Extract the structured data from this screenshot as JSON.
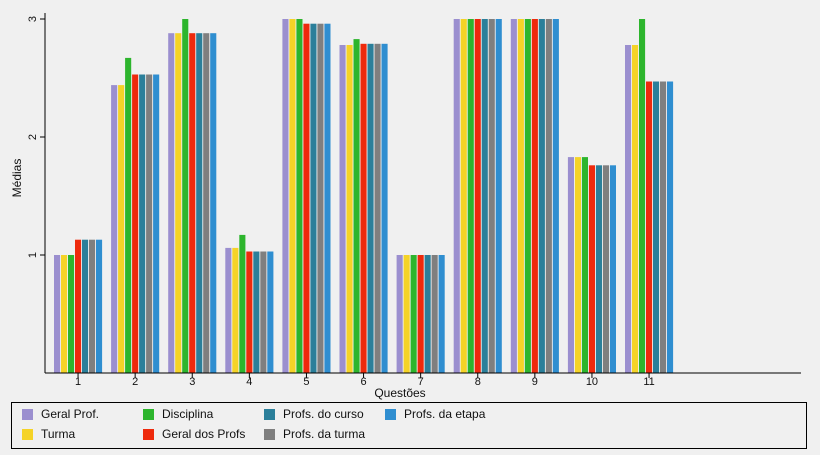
{
  "chart_data": {
    "type": "bar",
    "xlabel": "Questões",
    "ylabel": "Médias",
    "ylim": [
      0,
      3
    ],
    "yticks": [
      1,
      2,
      3
    ],
    "categories": [
      "1",
      "2",
      "3",
      "4",
      "5",
      "6",
      "7",
      "8",
      "9",
      "10",
      "11"
    ],
    "series": [
      {
        "name": "Geral Prof.",
        "color": "#9b8fcf",
        "values": [
          1.0,
          2.44,
          2.88,
          1.06,
          3.0,
          2.78,
          1.0,
          3.0,
          3.0,
          1.83,
          2.78
        ]
      },
      {
        "name": "Turma",
        "color": "#f5d327",
        "values": [
          1.0,
          2.44,
          2.88,
          1.06,
          3.0,
          2.78,
          1.0,
          3.0,
          3.0,
          1.83,
          2.78
        ]
      },
      {
        "name": "Disciplina",
        "color": "#2db52d",
        "values": [
          1.0,
          2.67,
          3.0,
          1.17,
          3.0,
          2.83,
          1.0,
          3.0,
          3.0,
          1.83,
          3.0
        ]
      },
      {
        "name": "Geral dos Profs",
        "color": "#ee2a0c",
        "values": [
          1.13,
          2.53,
          2.88,
          1.03,
          2.96,
          2.79,
          1.0,
          3.0,
          3.0,
          1.76,
          2.47
        ]
      },
      {
        "name": "Profs. do curso",
        "color": "#2b7f9a",
        "values": [
          1.13,
          2.53,
          2.88,
          1.03,
          2.96,
          2.79,
          1.0,
          3.0,
          3.0,
          1.76,
          2.47
        ]
      },
      {
        "name": "Profs. da turma",
        "color": "#7f7f7f",
        "values": [
          1.13,
          2.53,
          2.88,
          1.03,
          2.96,
          2.79,
          1.0,
          3.0,
          3.0,
          1.76,
          2.47
        ]
      },
      {
        "name": "Profs. da etapa",
        "color": "#2f8ed0",
        "values": [
          1.13,
          2.53,
          2.88,
          1.03,
          2.96,
          2.79,
          1.0,
          3.0,
          3.0,
          1.76,
          2.47
        ]
      }
    ],
    "grid": false,
    "legend_position": "bottom"
  }
}
